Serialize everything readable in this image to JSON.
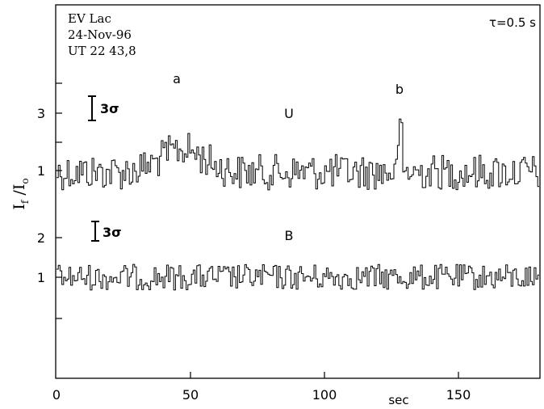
{
  "chart_data": {
    "type": "line",
    "info": [
      "EV Lac",
      "24-Nov-96",
      "UT 22 43,8"
    ],
    "tau_label": "τ=0.5 s",
    "ylabel": "I_f / I_o",
    "xlabel": "sec",
    "xlim": [
      0,
      180
    ],
    "x_ticks": [
      "0",
      "50",
      "100",
      "150"
    ],
    "sigma_label": "3σ",
    "panels": [
      {
        "name": "U",
        "baseline": 1,
        "y_ticks": [
          "3",
          "1"
        ],
        "peaks": [
          {
            "label": "a",
            "x": 45
          },
          {
            "label": "b",
            "x": 126
          }
        ]
      },
      {
        "name": "B",
        "baseline": 1,
        "y_ticks": [
          "2",
          "1"
        ],
        "peaks": []
      }
    ],
    "grid": false
  }
}
